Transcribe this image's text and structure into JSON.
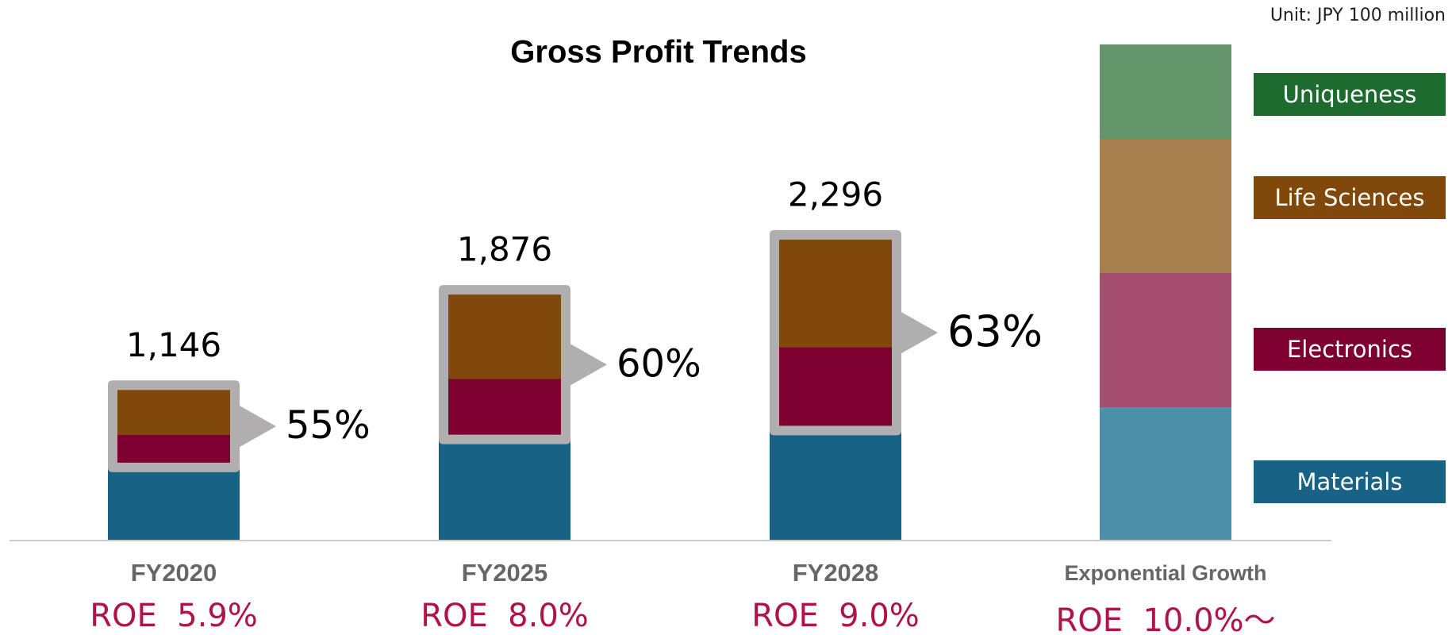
{
  "chart_data": {
    "type": "bar",
    "title": "Gross Profit Trends",
    "unit_note": "Unit: JPY 100 million",
    "categories": [
      "FY2020",
      "FY2025",
      "FY2028",
      "Exponential Growth"
    ],
    "series": [
      {
        "name": "Materials",
        "color": "#176285",
        "light_color": "#4c8fa8",
        "values": [
          590,
          804,
          872,
          null
        ]
      },
      {
        "name": "Electronics",
        "color": "#7d0030",
        "light_color": "#a44f6e",
        "values": [
          214,
          426,
          602,
          null
        ]
      },
      {
        "name": "Life Sciences",
        "color": "#80480a",
        "light_color": "#a88050",
        "values": [
          342,
          646,
          822,
          null
        ]
      },
      {
        "name": "Uniqueness",
        "color": "#1e6b30",
        "light_color": "#64956a",
        "values": [
          null,
          null,
          null,
          null
        ]
      }
    ],
    "totals": [
      1146,
      1876,
      2296,
      null
    ],
    "total_labels": [
      "1,146",
      "1,876",
      "2,296",
      null
    ],
    "shares": [
      55,
      60,
      63,
      null
    ],
    "share_labels": [
      "55%",
      "60%",
      "63%",
      null
    ],
    "roe": [
      "ROE  5.9%",
      "ROE  8.0%",
      "ROE  9.0%",
      "ROE  10.0%～"
    ],
    "ylim": [
      0,
      3000
    ]
  }
}
